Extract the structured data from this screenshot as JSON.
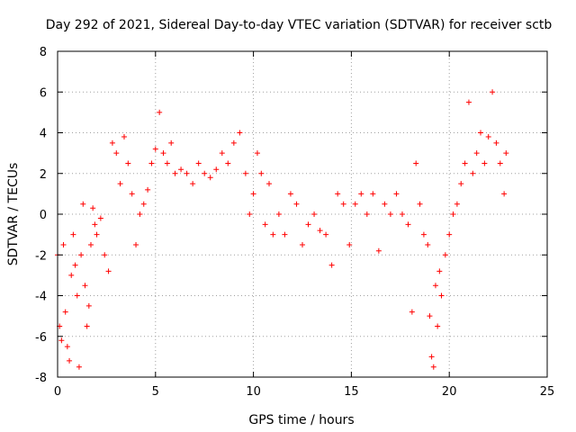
{
  "chart_data": {
    "type": "scatter",
    "title": "Day 292 of 2021, Sidereal Day-to-day VTEC variation (SDTVAR) for receiver sctb",
    "xlabel": "GPS time / hours",
    "ylabel": "SDTVAR / TECUs",
    "xlim": [
      0,
      25
    ],
    "ylim": [
      -8,
      8
    ],
    "xticks": [
      0,
      5,
      10,
      15,
      20,
      25
    ],
    "yticks": [
      -8,
      -6,
      -4,
      -2,
      0,
      2,
      4,
      6,
      8
    ],
    "xtick_labels": [
      "0",
      "5",
      "10",
      "15",
      "20",
      "25"
    ],
    "ytick_labels": [
      "-8",
      "-6",
      "-4",
      "-2",
      "0",
      "2",
      "4",
      "6",
      "8"
    ],
    "grid": true,
    "marker": "+",
    "color": "#ff0000",
    "series": [
      {
        "name": "SDTVAR",
        "x": [
          0.0,
          0.1,
          0.2,
          0.3,
          0.4,
          0.5,
          0.6,
          0.7,
          0.8,
          0.9,
          1.0,
          1.1,
          1.2,
          1.3,
          1.4,
          1.5,
          1.6,
          1.7,
          1.8,
          1.9,
          2.0,
          2.2,
          2.4,
          2.6,
          2.8,
          3.0,
          3.2,
          3.4,
          3.6,
          3.8,
          4.0,
          4.2,
          4.4,
          4.6,
          4.8,
          5.0,
          5.2,
          5.4,
          5.6,
          5.8,
          6.0,
          6.3,
          6.6,
          6.9,
          7.2,
          7.5,
          7.8,
          8.1,
          8.4,
          8.7,
          9.0,
          9.3,
          9.6,
          9.8,
          10.0,
          10.2,
          10.4,
          10.6,
          10.8,
          11.0,
          11.3,
          11.6,
          11.9,
          12.2,
          12.5,
          12.8,
          13.1,
          13.4,
          13.7,
          14.0,
          14.3,
          14.6,
          14.9,
          15.2,
          15.5,
          15.8,
          16.1,
          16.4,
          16.7,
          17.0,
          17.3,
          17.6,
          17.9,
          18.1,
          18.3,
          18.5,
          18.7,
          18.9,
          19.0,
          19.1,
          19.2,
          19.3,
          19.4,
          19.5,
          19.6,
          19.8,
          20.0,
          20.2,
          20.4,
          20.6,
          20.8,
          21.0,
          21.2,
          21.4,
          21.6,
          21.8,
          22.0,
          22.2,
          22.4,
          22.6,
          22.8,
          22.9
        ],
        "y": [
          -2.0,
          -5.5,
          -6.2,
          -1.5,
          -4.8,
          -6.5,
          -7.2,
          -3.0,
          -1.0,
          -2.5,
          -4.0,
          -7.5,
          -2.0,
          0.5,
          -3.5,
          -5.5,
          -4.5,
          -1.5,
          0.3,
          -0.5,
          -1.0,
          -0.2,
          -2.0,
          -2.8,
          3.5,
          3.0,
          1.5,
          3.8,
          2.5,
          1.0,
          -1.5,
          0.0,
          0.5,
          1.2,
          2.5,
          3.2,
          5.0,
          3.0,
          2.5,
          3.5,
          2.0,
          2.2,
          2.0,
          1.5,
          2.5,
          2.0,
          1.8,
          2.2,
          3.0,
          2.5,
          3.5,
          4.0,
          2.0,
          0.0,
          1.0,
          3.0,
          2.0,
          -0.5,
          1.5,
          -1.0,
          0.0,
          -1.0,
          1.0,
          0.5,
          -1.5,
          -0.5,
          0.0,
          -0.8,
          -1.0,
          -2.5,
          1.0,
          0.5,
          -1.5,
          0.5,
          1.0,
          0.0,
          1.0,
          -1.8,
          0.5,
          0.0,
          1.0,
          0.0,
          -0.5,
          -4.8,
          2.5,
          0.5,
          -1.0,
          -1.5,
          -5.0,
          -7.0,
          -7.5,
          -3.5,
          -5.5,
          -2.8,
          -4.0,
          -2.0,
          -1.0,
          0.0,
          0.5,
          1.5,
          2.5,
          5.5,
          2.0,
          3.0,
          4.0,
          2.5,
          3.8,
          6.0,
          3.5,
          2.5,
          1.0,
          3.0
        ]
      }
    ]
  }
}
